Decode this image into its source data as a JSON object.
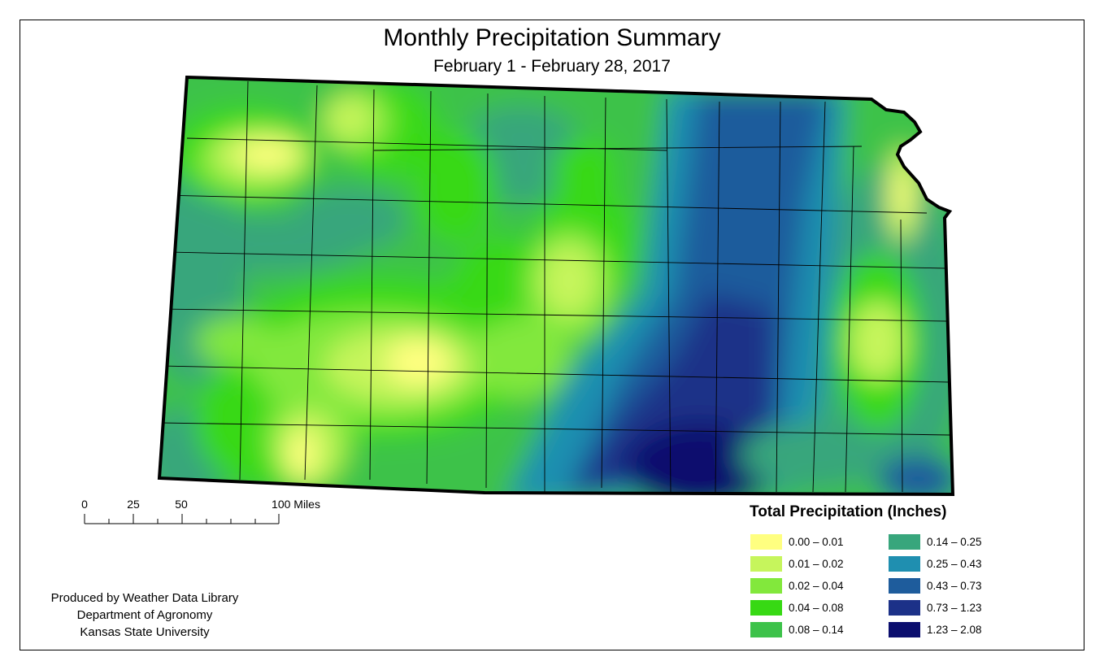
{
  "title": "Monthly Precipitation Summary",
  "subtitle": "February 1 - February 28, 2017",
  "scale_bar": {
    "labels": [
      "0",
      "25",
      "50",
      "100 Miles"
    ]
  },
  "legend": {
    "title": "Total Precipitation (Inches)",
    "items": [
      {
        "label": "0.00 – 0.01",
        "color": "#ffff80"
      },
      {
        "label": "0.01 – 0.02",
        "color": "#c6f55c"
      },
      {
        "label": "0.02 – 0.04",
        "color": "#82e83c"
      },
      {
        "label": "0.04 – 0.08",
        "color": "#37d914"
      },
      {
        "label": "0.08 – 0.14",
        "color": "#3dc24a"
      },
      {
        "label": "0.14 – 0.25",
        "color": "#38a67c"
      },
      {
        "label": "0.25 – 0.43",
        "color": "#1f8fb0"
      },
      {
        "label": "0.43 – 0.73",
        "color": "#1e5c9c"
      },
      {
        "label": "0.73 – 1.23",
        "color": "#1c3188"
      },
      {
        "label": "1.23 – 2.08",
        "color": "#0b0e6e"
      }
    ]
  },
  "credits": [
    "Produced by Weather Data Library",
    "Department of Agronomy",
    "Kansas State University"
  ]
}
